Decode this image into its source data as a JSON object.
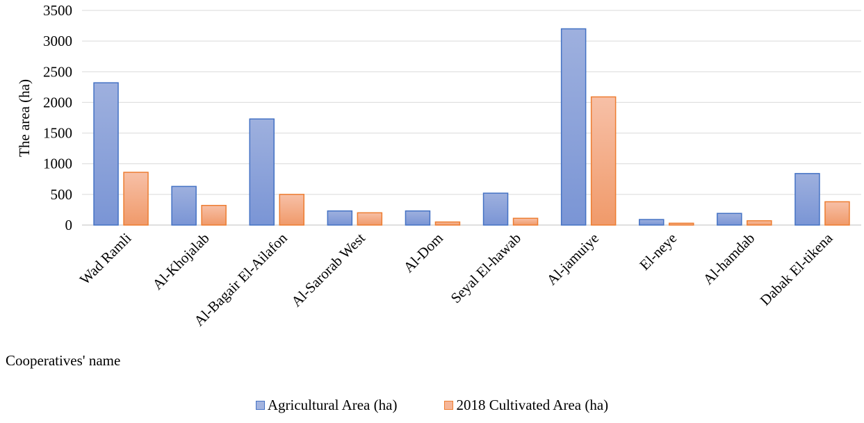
{
  "chart_data": {
    "type": "bar",
    "title": "",
    "xlabel": "Cooperatives' name",
    "ylabel": "The area (ha)",
    "ylim": [
      0,
      3500
    ],
    "yticks": [
      0,
      500,
      1000,
      1500,
      2000,
      2500,
      3000,
      3500
    ],
    "grid": true,
    "legend_position": "bottom",
    "categories": [
      "Wad Ramli",
      "Al-Khojalab",
      "Al-Bagair El-Ailafon",
      "Al-Sarorab West",
      "Al-Dom",
      "Seyal El-hawab",
      "Al-jamuiye",
      "El-neye",
      "Al-hamdab",
      "Dabak El-tikena"
    ],
    "series": [
      {
        "name": "Agricultural Area (ha)",
        "color": "#4472C4",
        "fill": "#A3B4E0",
        "values": [
          2320,
          630,
          1730,
          230,
          230,
          520,
          3200,
          90,
          190,
          840
        ]
      },
      {
        "name": "2018 Cultivated Area (ha)",
        "color": "#ED7D31",
        "fill": "#F6B698",
        "values": [
          860,
          320,
          500,
          200,
          50,
          110,
          2090,
          30,
          70,
          380
        ]
      }
    ]
  }
}
